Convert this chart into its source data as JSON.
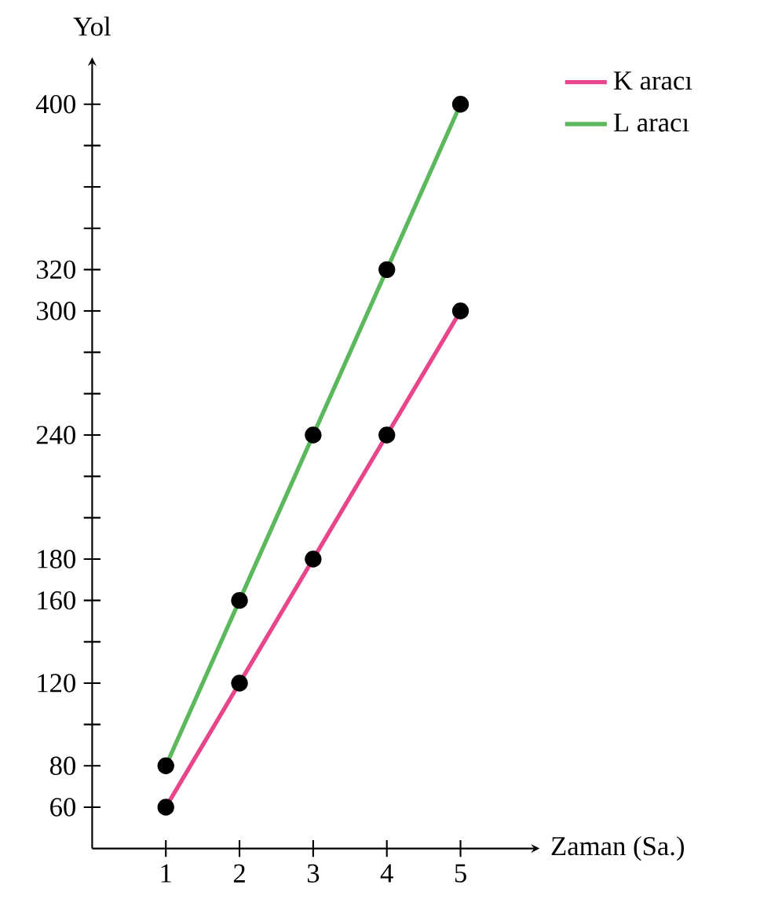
{
  "chart_data": {
    "type": "line",
    "xlabel": "Zaman (Sa.)",
    "ylabel": "Yol",
    "x": [
      1,
      2,
      3,
      4,
      5
    ],
    "series": [
      {
        "name": "K aracı",
        "color": "#e8458b",
        "values": [
          60,
          120,
          180,
          240,
          300
        ]
      },
      {
        "name": "L aracı",
        "color": "#5cb85c",
        "values": [
          80,
          160,
          240,
          320,
          400
        ]
      }
    ],
    "xlim": [
      0,
      6
    ],
    "ylim": [
      40,
      420
    ],
    "xticks": [
      1,
      2,
      3,
      4,
      5
    ],
    "yticks": [
      60,
      80,
      {
        "value": 100,
        "label": null
      },
      120,
      {
        "value": 140,
        "label": null
      },
      160,
      180,
      {
        "value": 200,
        "label": null
      },
      {
        "value": 220,
        "label": null
      },
      240,
      {
        "value": 260,
        "label": null
      },
      {
        "value": 280,
        "label": null
      },
      300,
      320,
      {
        "value": 340,
        "label": null
      },
      {
        "value": 360,
        "label": null
      },
      {
        "value": 380,
        "label": null
      },
      400
    ],
    "marker": "circle",
    "legend": "top right",
    "grid": false
  }
}
